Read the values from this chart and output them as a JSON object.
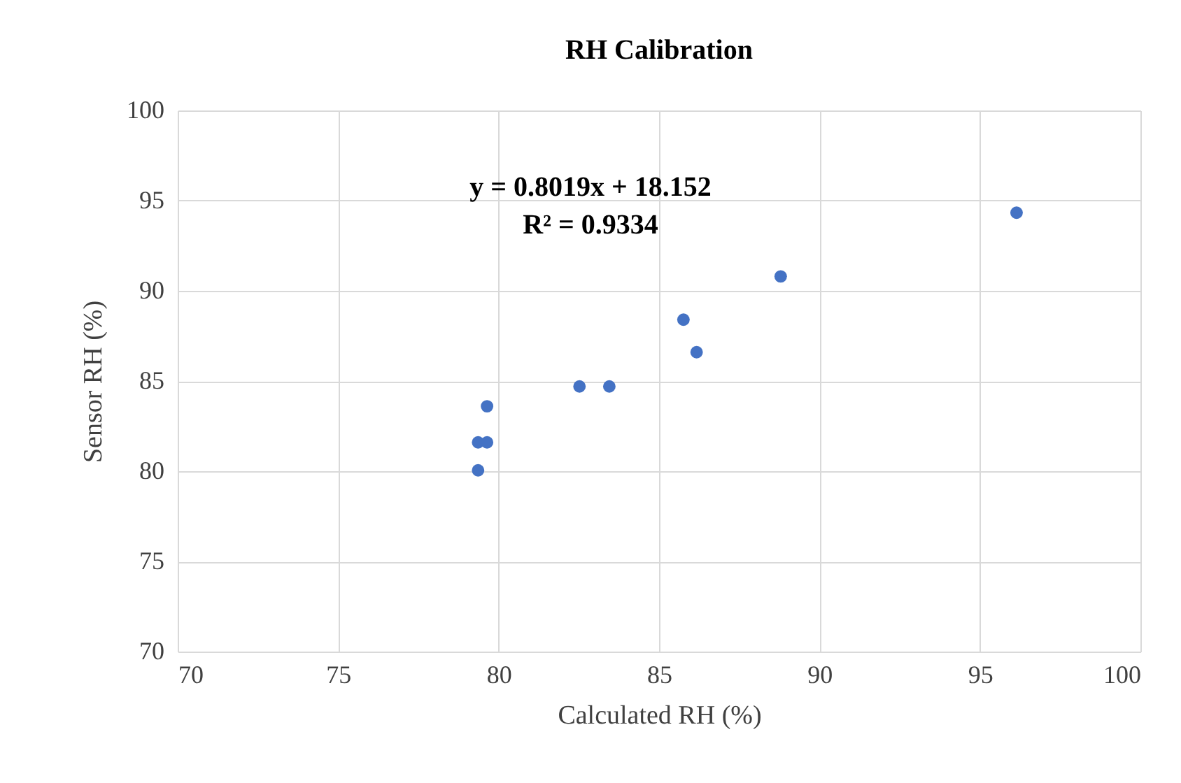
{
  "chart_data": {
    "type": "scatter",
    "title": "RH Calibration",
    "xlabel": "Calculated RH (%)",
    "ylabel": "Sensor RH (%)",
    "annotations": [
      "y = 0.8019x + 18.152",
      "R² = 0.9334"
    ],
    "x": [
      96.14,
      88.79,
      85.76,
      86.17,
      82.52,
      83.45,
      79.64,
      79.36,
      79.64,
      79.36
    ],
    "series": [
      {
        "color": "#4472c4",
        "values": [
          94.33,
          90.8,
          88.4,
          86.6,
          84.7,
          84.7,
          83.6,
          81.6,
          81.6,
          80.05
        ]
      }
    ],
    "xlim": [
      70,
      100
    ],
    "xticks": [
      70,
      75,
      80,
      85,
      90,
      95,
      100
    ],
    "ylim": [
      70,
      100
    ],
    "yticks": [
      70,
      75,
      80,
      85,
      90,
      95,
      100
    ],
    "grid": true,
    "marker": "circle"
  }
}
